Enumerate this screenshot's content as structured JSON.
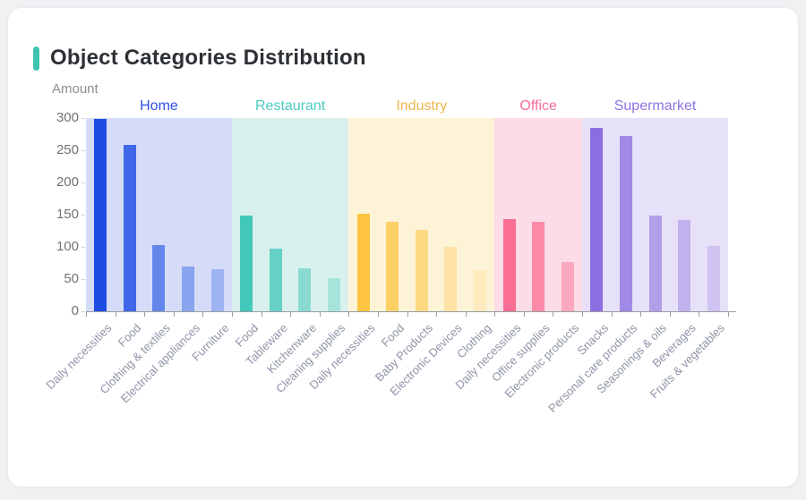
{
  "card": {
    "title": "Object Categories Distribution",
    "accent_color": "#3fc3b3"
  },
  "chart_data": {
    "type": "bar",
    "title": "Object Categories Distribution",
    "xlabel": "",
    "ylabel": "Amount",
    "ylim": [
      0,
      300
    ],
    "y_ticks": [
      0,
      50,
      100,
      150,
      200,
      250,
      300
    ],
    "grid": false,
    "legend_position": "none",
    "axis_color": "#9a9ea4",
    "groups": [
      {
        "name": "Home",
        "label_color": "#2d50e6",
        "band_color": "#d4dcf7",
        "categories": [
          "Daily necessities",
          "Food",
          "Clothing & textiles",
          "Electrical appliances",
          "Furniture"
        ],
        "values": [
          298,
          258,
          103,
          70,
          65
        ],
        "bar_colors": [
          "#1d4ce2",
          "#3f67e7",
          "#6486eb",
          "#89a3ef",
          "#9eb3f2"
        ]
      },
      {
        "name": "Restaurant",
        "label_color": "#4bccbe",
        "band_color": "#d8f1ed",
        "categories": [
          "Food",
          "Tableware",
          "Kitchenware",
          "Cleaning supplies"
        ],
        "values": [
          149,
          97,
          66,
          52
        ],
        "bar_colors": [
          "#41c8ba",
          "#65d1c5",
          "#89dbd1",
          "#a5e4db"
        ]
      },
      {
        "name": "Industry",
        "label_color": "#efb54c",
        "band_color": "#fdf3d7",
        "categories": [
          "Daily necessities",
          "Food",
          "Baby Products",
          "Electronic Devices",
          "Clothing"
        ],
        "values": [
          151,
          139,
          127,
          100,
          64
        ],
        "bar_colors": [
          "#fec640",
          "#fdd066",
          "#fdd983",
          "#fde2a3",
          "#fdeabd"
        ]
      },
      {
        "name": "Office",
        "label_color": "#f76e95",
        "band_color": "#fcdce6",
        "categories": [
          "Daily necessities",
          "Office supplies",
          "Electronic products"
        ],
        "values": [
          143,
          139,
          76
        ],
        "bar_colors": [
          "#fa6d94",
          "#fa8aa8",
          "#fba7bc"
        ]
      },
      {
        "name": "Supermarket",
        "label_color": "#8d72e1",
        "band_color": "#e6e0f8",
        "categories": [
          "Snacks",
          "Personal care products",
          "Seasonings & oils",
          "Beverages",
          "Fruits & vegetables"
        ],
        "values": [
          285,
          272,
          149,
          141,
          102
        ],
        "bar_colors": [
          "#8b6fe1",
          "#a189e6",
          "#b29fe9",
          "#c1b2ed",
          "#cfc3f1"
        ]
      }
    ]
  }
}
